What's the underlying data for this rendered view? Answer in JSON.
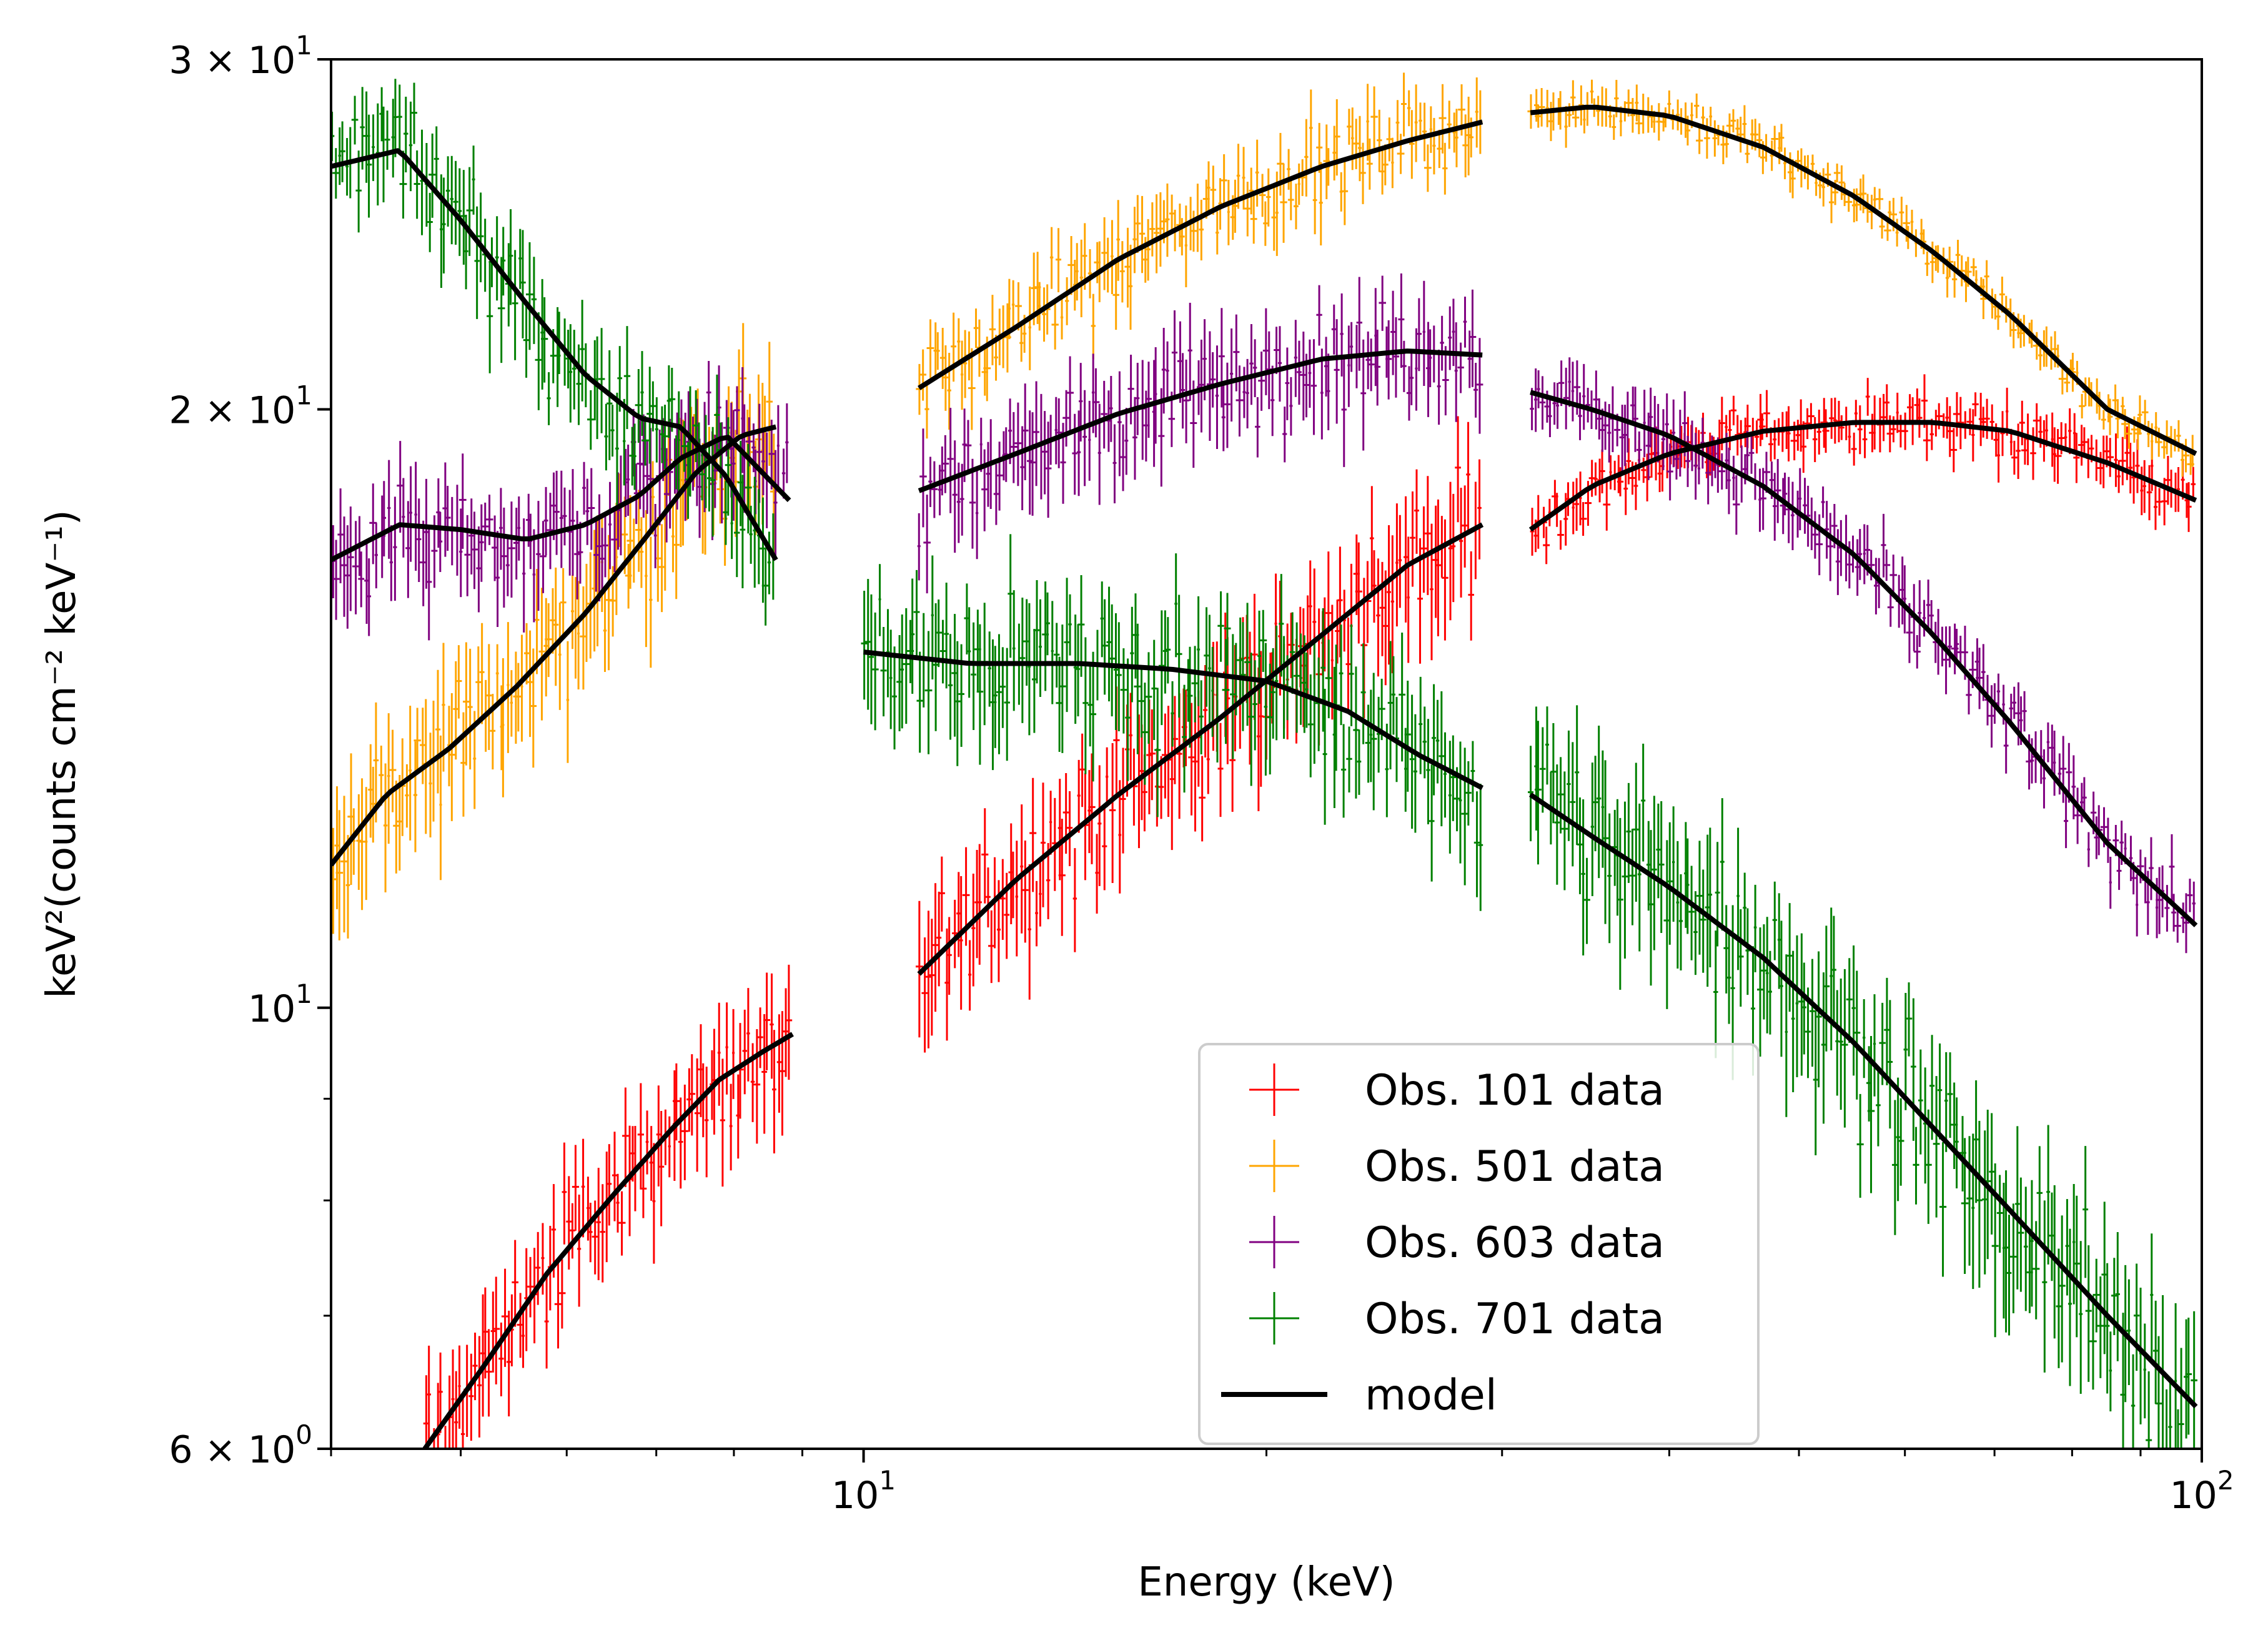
{
  "chart_data": {
    "type": "line",
    "xlabel": "Energy (keV)",
    "ylabel": "keV²(counts cm⁻² keV⁻¹)",
    "xscale": "log",
    "yscale": "log",
    "xlim": [
      4,
      100
    ],
    "ylim": [
      6,
      30
    ],
    "x_ticks": [
      {
        "value": 10,
        "base": "10",
        "exp": "1"
      },
      {
        "value": 100,
        "base": "10",
        "exp": "2"
      }
    ],
    "y_ticks": [
      {
        "value": 30,
        "mant": "3 × 10",
        "exp": "1"
      },
      {
        "value": 20,
        "mant": "2 × 10",
        "exp": "1"
      },
      {
        "value": 10,
        "mant": "10",
        "exp": "1"
      },
      {
        "value": 6,
        "mant": "6 × 10",
        "exp": "0"
      }
    ],
    "legend_position": "lower-center",
    "series": [
      {
        "name": "Obs. 101 data",
        "color": "#ff0000",
        "segments": [
          {
            "x": [
              4.7,
              5.2,
              5.8,
              6.5,
              7.2,
              7.8,
              8.4,
              8.85
            ],
            "y": [
              6.0,
              6.6,
              7.35,
              8.05,
              8.7,
              9.2,
              9.5,
              9.7
            ],
            "scatter": 0.045
          },
          {
            "x": [
              11.0,
              13.0,
              15.5,
              18.5,
              22.0,
              25.5,
              29.0
            ],
            "y": [
              10.4,
              11.6,
              12.8,
              14.0,
              15.4,
              16.7,
              17.5
            ],
            "scatter": 0.05
          },
          {
            "x": [
              31.5,
              35.0,
              40.0,
              47.0,
              55.0,
              63.0,
              72.0,
              85.0,
              99.0
            ],
            "y": [
              17.4,
              18.3,
              19.0,
              19.5,
              19.7,
              19.7,
              19.5,
              18.8,
              18.0
            ],
            "scatter": 0.02
          }
        ]
      },
      {
        "name": "Obs. 501 data",
        "color": "#ffa500",
        "segments": [
          {
            "x": [
              4.0,
              4.4,
              4.9,
              5.5,
              6.2,
              6.9,
              7.5,
              8.1,
              8.6
            ],
            "y": [
              11.8,
              12.8,
              13.5,
              14.5,
              15.8,
              17.3,
              18.6,
              19.4,
              19.6
            ],
            "scatter": 0.05
          },
          {
            "x": [
              11.0,
              13.0,
              15.5,
              18.5,
              22.0,
              25.5,
              29.0
            ],
            "y": [
              20.5,
              22.0,
              23.8,
              25.3,
              26.5,
              27.3,
              27.9
            ],
            "scatter": 0.03
          },
          {
            "x": [
              31.5,
              35.0,
              40.0,
              47.0,
              55.0,
              63.0,
              72.0,
              85.0,
              99.0
            ],
            "y": [
              28.2,
              28.4,
              28.1,
              27.1,
              25.6,
              24.0,
              22.3,
              20.0,
              19.0
            ],
            "scatter": 0.015
          }
        ]
      },
      {
        "name": "Obs. 603 data",
        "color": "#800080",
        "segments": [
          {
            "x": [
              4.0,
              4.5,
              5.0,
              5.6,
              6.2,
              6.8,
              7.3,
              7.9,
              8.8
            ],
            "y": [
              16.8,
              17.5,
              17.4,
              17.2,
              17.5,
              18.1,
              18.9,
              19.4,
              18.0
            ],
            "scatter": 0.04
          },
          {
            "x": [
              11.0,
              13.0,
              15.5,
              18.5,
              22.0,
              25.5,
              29.0
            ],
            "y": [
              18.2,
              19.0,
              19.9,
              20.6,
              21.2,
              21.4,
              21.3
            ],
            "scatter": 0.04
          },
          {
            "x": [
              31.5,
              35.0,
              40.0,
              47.0,
              55.0,
              63.0,
              72.0,
              85.0,
              99.0
            ],
            "y": [
              20.4,
              20.0,
              19.4,
              18.3,
              16.9,
              15.4,
              13.9,
              12.1,
              11.0
            ],
            "scatter": 0.025
          }
        ]
      },
      {
        "name": "Obs. 701 data",
        "color": "#008000",
        "segments": [
          {
            "x": [
              4.0,
              4.5,
              5.0,
              5.6,
              6.2,
              6.8,
              7.3,
              7.9,
              8.6
            ],
            "y": [
              26.5,
              27.0,
              24.9,
              22.6,
              20.8,
              19.8,
              19.6,
              18.5,
              16.8
            ],
            "scatter": 0.04
          },
          {
            "x": [
              10.0,
              12.0,
              14.5,
              17.0,
              20.0,
              23.0,
              26.0,
              29.0
            ],
            "y": [
              15.1,
              14.9,
              14.9,
              14.8,
              14.6,
              14.1,
              13.4,
              12.9
            ],
            "scatter": 0.05
          },
          {
            "x": [
              31.5,
              35.0,
              40.0,
              47.0,
              55.0,
              63.0,
              72.0,
              85.0,
              99.0
            ],
            "y": [
              12.8,
              12.2,
              11.5,
              10.6,
              9.6,
              8.7,
              7.9,
              7.0,
              6.3
            ],
            "scatter": 0.06
          }
        ]
      }
    ],
    "model": {
      "name": "model",
      "color": "#000000",
      "curves": [
        {
          "x": [
            4.7,
            5.2,
            5.8,
            6.5,
            7.2,
            7.8,
            8.4,
            8.85
          ],
          "y": [
            6.0,
            6.6,
            7.35,
            8.05,
            8.7,
            9.2,
            9.5,
            9.7
          ]
        },
        {
          "x": [
            11.0,
            13.0,
            15.5,
            18.5,
            22.0,
            25.5,
            29.0
          ],
          "y": [
            10.4,
            11.6,
            12.8,
            14.0,
            15.4,
            16.7,
            17.5
          ]
        },
        {
          "x": [
            31.5,
            35.0,
            40.0,
            47.0,
            55.0,
            63.0,
            72.0,
            85.0,
            99.0
          ],
          "y": [
            17.4,
            18.3,
            19.0,
            19.5,
            19.7,
            19.7,
            19.5,
            18.8,
            18.0
          ]
        },
        {
          "x": [
            4.0,
            4.4,
            4.9,
            5.5,
            6.2,
            6.9,
            7.5,
            8.1,
            8.6
          ],
          "y": [
            11.8,
            12.8,
            13.5,
            14.5,
            15.8,
            17.3,
            18.6,
            19.4,
            19.6
          ]
        },
        {
          "x": [
            11.0,
            13.0,
            15.5,
            18.5,
            22.0,
            25.5,
            29.0
          ],
          "y": [
            20.5,
            22.0,
            23.8,
            25.3,
            26.5,
            27.3,
            27.9
          ]
        },
        {
          "x": [
            31.5,
            35.0,
            40.0,
            47.0,
            55.0,
            63.0,
            72.0,
            85.0,
            99.0
          ],
          "y": [
            28.2,
            28.4,
            28.1,
            27.1,
            25.6,
            24.0,
            22.3,
            20.0,
            19.0
          ]
        },
        {
          "x": [
            4.0,
            4.5,
            5.0,
            5.6,
            6.2,
            6.8,
            7.3,
            7.9,
            8.8
          ],
          "y": [
            16.8,
            17.5,
            17.4,
            17.2,
            17.5,
            18.1,
            18.9,
            19.4,
            18.0
          ]
        },
        {
          "x": [
            11.0,
            13.0,
            15.5,
            18.5,
            22.0,
            25.5,
            29.0
          ],
          "y": [
            18.2,
            19.0,
            19.9,
            20.6,
            21.2,
            21.4,
            21.3
          ]
        },
        {
          "x": [
            31.5,
            35.0,
            40.0,
            47.0,
            55.0,
            63.0,
            72.0,
            85.0,
            99.0
          ],
          "y": [
            20.4,
            20.0,
            19.4,
            18.3,
            16.9,
            15.4,
            13.9,
            12.1,
            11.0
          ]
        },
        {
          "x": [
            4.0,
            4.5,
            5.0,
            5.6,
            6.2,
            6.8,
            7.3,
            7.9,
            8.6
          ],
          "y": [
            26.5,
            27.0,
            24.9,
            22.6,
            20.8,
            19.8,
            19.6,
            18.5,
            16.8
          ]
        },
        {
          "x": [
            10.0,
            12.0,
            14.5,
            17.0,
            20.0,
            23.0,
            26.0,
            29.0
          ],
          "y": [
            15.1,
            14.9,
            14.9,
            14.8,
            14.6,
            14.1,
            13.4,
            12.9
          ]
        },
        {
          "x": [
            31.5,
            35.0,
            40.0,
            47.0,
            55.0,
            63.0,
            72.0,
            85.0,
            99.0
          ],
          "y": [
            12.8,
            12.2,
            11.5,
            10.6,
            9.6,
            8.7,
            7.9,
            7.0,
            6.3
          ]
        }
      ]
    },
    "legend": [
      "Obs. 101 data",
      "Obs. 501 data",
      "Obs. 603 data",
      "Obs. 701 data",
      "model"
    ]
  }
}
